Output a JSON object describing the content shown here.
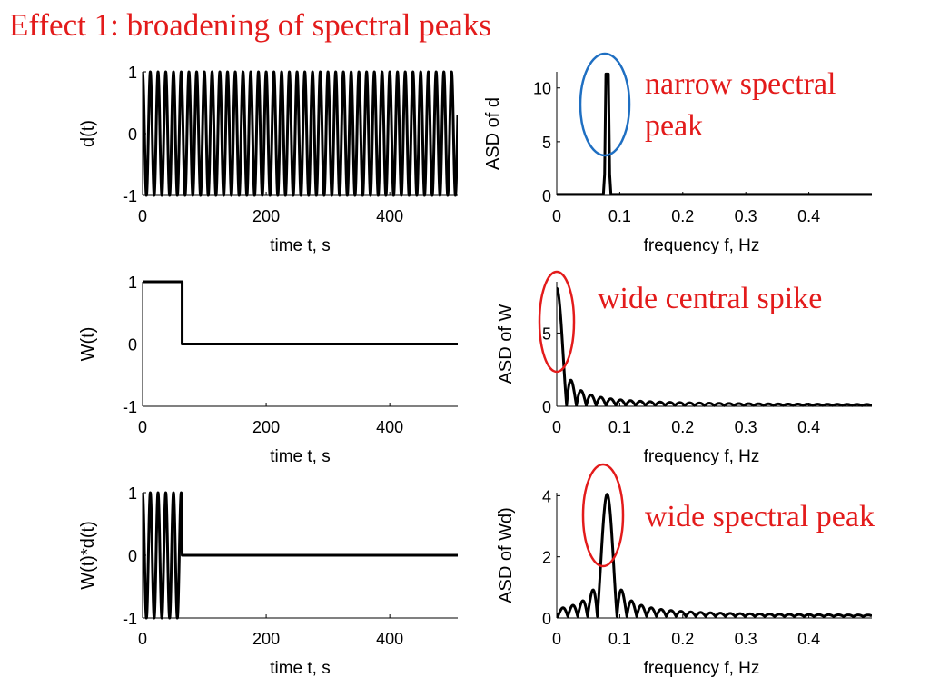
{
  "slide": {
    "title": "Effect 1: broadening of spectral peaks",
    "title_color": "#e31b1b"
  },
  "annotations": [
    {
      "text_lines": [
        "narrow spectral",
        "peak"
      ],
      "color": "#e31b1b",
      "marker_color": "#1f6fc2",
      "panel": "asd-d"
    },
    {
      "text_lines": [
        "wide central spike"
      ],
      "color": "#e31b1b",
      "marker_color": "#e31b1b",
      "panel": "asd-w"
    },
    {
      "text_lines": [
        "wide spectral peak"
      ],
      "color": "#e31b1b",
      "marker_color": "#e31b1b",
      "panel": "asd-wd"
    }
  ],
  "chart_data": [
    {
      "id": "d-time",
      "type": "line",
      "ylabel": "d(t)",
      "xlabel": "time t, s",
      "xlim": [
        0,
        510
      ],
      "ylim": [
        -1,
        1
      ],
      "xticks": [
        0,
        200,
        400
      ],
      "yticks": [
        -1,
        0,
        1
      ],
      "series": [
        {
          "function": "cos(2*pi*0.08*t)",
          "t_range": [
            0,
            510
          ],
          "color": "#000000"
        }
      ]
    },
    {
      "id": "asd-d",
      "type": "line",
      "ylabel": "ASD of d",
      "xlabel": "frequency f, Hz",
      "xlim": [
        0,
        0.5
      ],
      "ylim": [
        0,
        11.5
      ],
      "xticks": [
        0,
        0.1,
        0.2,
        0.3,
        0.4
      ],
      "yticks": [
        0,
        5,
        10
      ],
      "series": [
        {
          "x": [
            0,
            0.074,
            0.076,
            0.078,
            0.08,
            0.082,
            0.084,
            0.086,
            0.5
          ],
          "y": [
            0.1,
            0.1,
            2,
            11.3,
            11.3,
            11.3,
            2,
            0.1,
            0.1
          ],
          "color": "#000000"
        }
      ]
    },
    {
      "id": "w-time",
      "type": "line",
      "ylabel": "W(t)",
      "xlabel": "time t, s",
      "xlim": [
        0,
        510
      ],
      "ylim": [
        -1,
        1
      ],
      "xticks": [
        0,
        200,
        400
      ],
      "yticks": [
        -1,
        0,
        1
      ],
      "series": [
        {
          "x": [
            0,
            64,
            64,
            510
          ],
          "y": [
            1,
            1,
            0,
            0
          ],
          "color": "#000000"
        }
      ]
    },
    {
      "id": "asd-w",
      "type": "line",
      "ylabel": "ASD of W",
      "xlabel": "frequency f, Hz",
      "xlim": [
        0,
        0.5
      ],
      "ylim": [
        0,
        8.5
      ],
      "xticks": [
        0,
        0.1,
        0.2,
        0.3,
        0.4
      ],
      "yticks": [
        0,
        5
      ],
      "series": [
        {
          "function": "sinc-lobes",
          "peak": 8.0,
          "lobe_width": 0.0156,
          "center": 0,
          "color": "#000000"
        }
      ]
    },
    {
      "id": "wd-time",
      "type": "line",
      "ylabel": "W(t)*d(t)",
      "xlabel": "time t, s",
      "xlim": [
        0,
        510
      ],
      "ylim": [
        -1,
        1
      ],
      "xticks": [
        0,
        200,
        400
      ],
      "yticks": [
        -1,
        0,
        1
      ],
      "series": [
        {
          "function": "cos(2*pi*0.08*t) for t<64 else 0",
          "t_range": [
            0,
            510
          ],
          "color": "#000000"
        }
      ]
    },
    {
      "id": "asd-wd",
      "type": "line",
      "ylabel": "ASD of Wd)",
      "xlabel": "frequency f, Hz",
      "xlim": [
        0,
        0.5
      ],
      "ylim": [
        0,
        4.1
      ],
      "xticks": [
        0,
        0.1,
        0.2,
        0.3,
        0.4
      ],
      "yticks": [
        0,
        2,
        4
      ],
      "series": [
        {
          "function": "sinc-lobes",
          "peak": 4.0,
          "lobe_width": 0.0156,
          "center": 0.08,
          "color": "#000000"
        }
      ]
    }
  ]
}
